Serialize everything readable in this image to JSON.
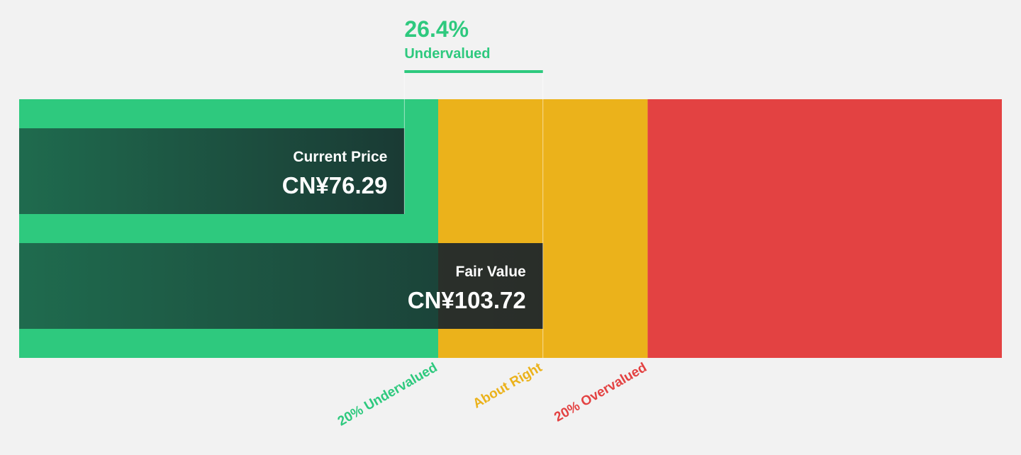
{
  "chart_data": {
    "type": "bar",
    "title": "",
    "currency": "CN¥",
    "current_price": {
      "label": "Current Price",
      "value": 76.29,
      "display": "CN¥76.29"
    },
    "fair_value": {
      "label": "Fair Value",
      "value": 103.72,
      "display": "CN¥103.72"
    },
    "discount": {
      "percent_text": "26.4%",
      "label": "Undervalued"
    },
    "axis_min": 0,
    "axis_max": 194.6,
    "zones": [
      {
        "name": "undervalued",
        "from": 0,
        "to": 82.98,
        "color": "#2ec97e"
      },
      {
        "name": "about-right",
        "from": 82.98,
        "to": 124.46,
        "color": "#ebb21b"
      },
      {
        "name": "overvalued",
        "from": 124.46,
        "to": 194.6,
        "color": "#e34242"
      }
    ],
    "zone_labels": [
      {
        "text": "20% Undervalued",
        "value": 82.98,
        "color": "#2ec97e"
      },
      {
        "text": "About Right",
        "value": 103.72,
        "color": "#ebb21b"
      },
      {
        "text": "20% Overvalued",
        "value": 124.46,
        "color": "#e34242"
      }
    ]
  },
  "colors": {
    "background": "#f2f2f2",
    "accent_green": "#2ec97e",
    "bar_dark_start": "#1f6b4e",
    "bar_dark_end": "#1a3a34",
    "text_white": "#ffffff"
  }
}
